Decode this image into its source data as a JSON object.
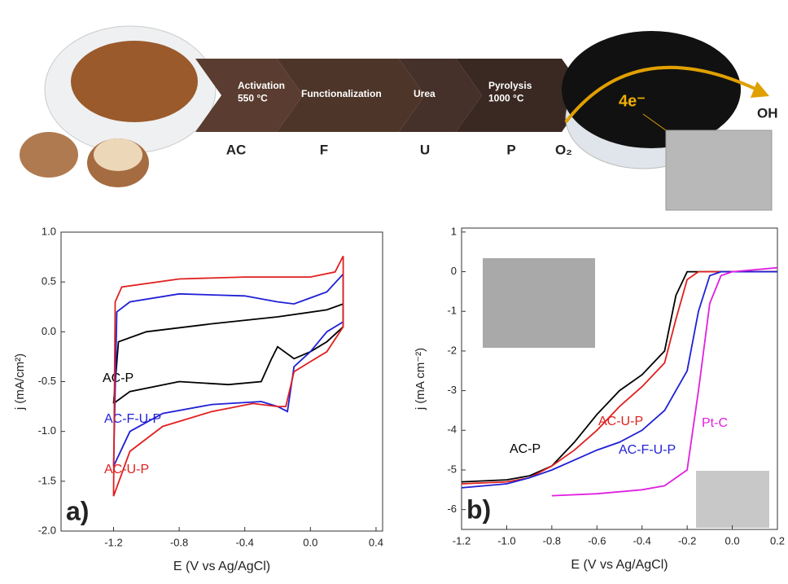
{
  "scheme": {
    "steps": [
      "Activation\n550 °C",
      "Functionalization",
      "Urea",
      "Pyrolysis\n1000 °C"
    ],
    "codes": [
      "AC",
      "F",
      "U",
      "P"
    ],
    "oxygen": "O₂",
    "electrons": "4e⁻",
    "product": "OH"
  },
  "chart_data": [
    {
      "type": "line",
      "panel": "a)",
      "xlabel": "E (V vs Ag/AgCl)",
      "ylabel": "j (mA/cm²)",
      "xlim": [
        -1.52,
        0.44
      ],
      "ylim": [
        -2,
        1
      ],
      "xticks": [
        -1.2,
        -0.8,
        -0.4,
        {
          "value": 0,
          "label": "0.0"
        },
        0.4
      ],
      "yticks": [
        {
          "value": -2,
          "label": "-2.0"
        },
        -1.5,
        {
          "value": -1,
          "label": "-1.0"
        },
        -0.5,
        {
          "value": 0,
          "label": "0.0"
        },
        0.5,
        {
          "value": 1,
          "label": "1.0"
        }
      ],
      "series": [
        {
          "name": "AC-P",
          "color": "#000000",
          "x": [
            -1.2,
            -1.17,
            -1.0,
            -0.6,
            -0.2,
            0.1,
            0.2,
            0.2,
            0.1,
            0.0,
            -0.1,
            -0.2,
            -0.24,
            -0.3,
            -0.5,
            -0.8,
            -1.1,
            -1.2
          ],
          "values": [
            -0.72,
            -0.1,
            0.0,
            0.08,
            0.15,
            0.22,
            0.28,
            0.05,
            -0.1,
            -0.2,
            -0.27,
            -0.15,
            -0.28,
            -0.5,
            -0.53,
            -0.5,
            -0.6,
            -0.72
          ]
        },
        {
          "name": "AC-F-U-P",
          "color": "#1f1fd6",
          "x": [
            -1.2,
            -1.18,
            -1.1,
            -0.8,
            -0.4,
            -0.2,
            -0.1,
            0.1,
            0.2,
            0.2,
            0.1,
            0.0,
            -0.1,
            -0.14,
            -0.2,
            -0.3,
            -0.6,
            -0.9,
            -1.1,
            -1.2
          ],
          "values": [
            -1.35,
            0.2,
            0.3,
            0.38,
            0.36,
            0.3,
            0.28,
            0.4,
            0.58,
            0.1,
            0.0,
            -0.2,
            -0.35,
            -0.8,
            -0.75,
            -0.7,
            -0.73,
            -0.82,
            -1.0,
            -1.35
          ]
        },
        {
          "name": "AC-U-P",
          "color": "#e02020",
          "x": [
            -1.2,
            -1.19,
            -1.15,
            -0.8,
            -0.4,
            0.0,
            0.15,
            0.2,
            0.2,
            0.1,
            0.0,
            -0.1,
            -0.15,
            -0.2,
            -0.35,
            -0.6,
            -0.9,
            -1.1,
            -1.2
          ],
          "values": [
            -1.65,
            0.3,
            0.45,
            0.53,
            0.55,
            0.55,
            0.6,
            0.76,
            0.05,
            -0.2,
            -0.3,
            -0.4,
            -0.75,
            -0.75,
            -0.72,
            -0.8,
            -0.95,
            -1.2,
            -1.65
          ]
        }
      ]
    },
    {
      "type": "line",
      "panel": "b)",
      "xlabel": "E (V vs Ag/AgCl)",
      "ylabel": "j (mA cm⁻²)",
      "xlim": [
        -1.2,
        0.2
      ],
      "ylim": [
        -6.5,
        1.1
      ],
      "xticks": [
        -1.2,
        {
          "value": -1,
          "label": "-1.0"
        },
        -0.8,
        -0.6,
        -0.4,
        -0.2,
        {
          "value": 0,
          "label": "0.0"
        },
        0.2
      ],
      "yticks": [
        -6,
        -5,
        -4,
        -3,
        -2,
        -1,
        0,
        1
      ],
      "series": [
        {
          "name": "AC-P",
          "color": "#000000",
          "x": [
            -1.2,
            -1.0,
            -0.9,
            -0.8,
            -0.7,
            -0.6,
            -0.5,
            -0.4,
            -0.3,
            -0.25,
            -0.2,
            0.0,
            0.2
          ],
          "values": [
            -5.3,
            -5.25,
            -5.15,
            -4.9,
            -4.3,
            -3.6,
            -3.0,
            -2.6,
            -2.0,
            -0.6,
            0,
            0,
            0
          ]
        },
        {
          "name": "AC-U-P",
          "color": "#e02020",
          "x": [
            -1.2,
            -1.0,
            -0.9,
            -0.8,
            -0.7,
            -0.6,
            -0.5,
            -0.4,
            -0.3,
            -0.25,
            -0.2,
            -0.15,
            0.2
          ],
          "values": [
            -5.35,
            -5.3,
            -5.2,
            -4.9,
            -4.5,
            -4.0,
            -3.4,
            -2.9,
            -2.3,
            -1.2,
            -0.2,
            0,
            0
          ]
        },
        {
          "name": "AC-F-U-P",
          "color": "#1f1fd6",
          "x": [
            -1.2,
            -1.0,
            -0.9,
            -0.8,
            -0.7,
            -0.6,
            -0.5,
            -0.4,
            -0.3,
            -0.2,
            -0.15,
            -0.1,
            -0.05,
            0.2
          ],
          "values": [
            -5.45,
            -5.35,
            -5.2,
            -5.0,
            -4.75,
            -4.5,
            -4.3,
            -4.0,
            -3.5,
            -2.5,
            -1.0,
            -0.1,
            0,
            0
          ]
        },
        {
          "name": "Pt-C",
          "color": "#e020e0",
          "x": [
            -0.8,
            -0.6,
            -0.4,
            -0.3,
            -0.2,
            -0.15,
            -0.1,
            -0.05,
            0.0,
            0.2
          ],
          "values": [
            -5.65,
            -5.6,
            -5.5,
            -5.4,
            -5.0,
            -3.0,
            -0.8,
            -0.1,
            0,
            0.1
          ]
        }
      ]
    }
  ]
}
